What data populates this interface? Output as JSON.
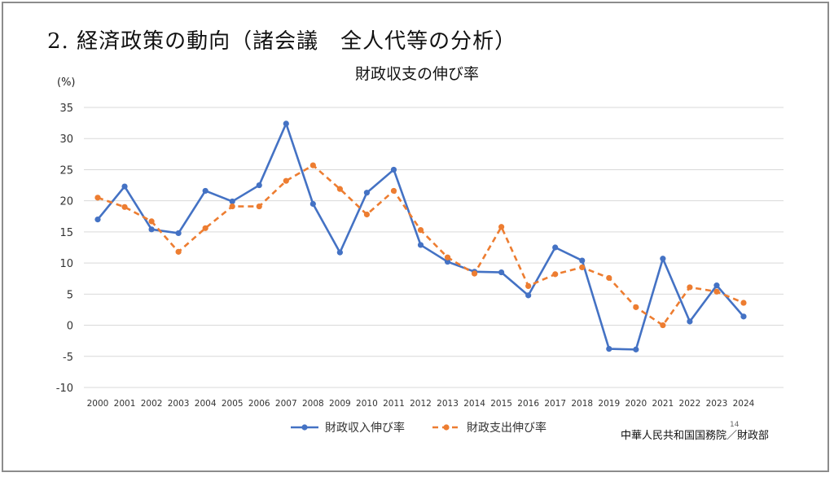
{
  "slide": {
    "title": "2.  経済政策の動向（諸会議　全人代等の分析）",
    "page_number": "14",
    "source": "中華人民共和国国務院／財政部"
  },
  "chart_data": {
    "type": "line",
    "title": "財政収支の伸び率",
    "ylabel": "",
    "y_unit": "(%)",
    "ylim": [
      -10,
      35
    ],
    "yticks": [
      -10,
      -5,
      0,
      5,
      10,
      15,
      20,
      25,
      30,
      35
    ],
    "grid": true,
    "legend_position": "bottom",
    "x": [
      "2000",
      "2001",
      "2002",
      "2003",
      "2004",
      "2005",
      "2006",
      "2007",
      "2008",
      "2009",
      "2010",
      "2011",
      "2012",
      "2013",
      "2014",
      "2015",
      "2016",
      "2017",
      "2018",
      "2019",
      "2020",
      "2021",
      "2022",
      "2023",
      "2024"
    ],
    "series": [
      {
        "name": "財政収入伸び率",
        "color": "#4472c4",
        "style": "solid",
        "values": [
          17.0,
          22.3,
          15.4,
          14.8,
          21.6,
          19.9,
          22.5,
          32.4,
          19.5,
          11.7,
          21.3,
          25.0,
          12.9,
          10.2,
          8.6,
          8.5,
          4.8,
          12.5,
          10.4,
          -3.8,
          -3.9,
          10.7,
          0.6,
          6.4,
          1.4
        ]
      },
      {
        "name": "財政支出伸び率",
        "color": "#ed7d31",
        "style": "dashed",
        "values": [
          20.5,
          19.0,
          16.7,
          11.8,
          15.6,
          19.1,
          19.1,
          23.2,
          25.7,
          21.9,
          17.8,
          21.6,
          15.3,
          10.9,
          8.3,
          15.8,
          6.3,
          8.2,
          9.3,
          7.6,
          2.9,
          0.0,
          6.1,
          5.4,
          3.6
        ]
      }
    ]
  }
}
